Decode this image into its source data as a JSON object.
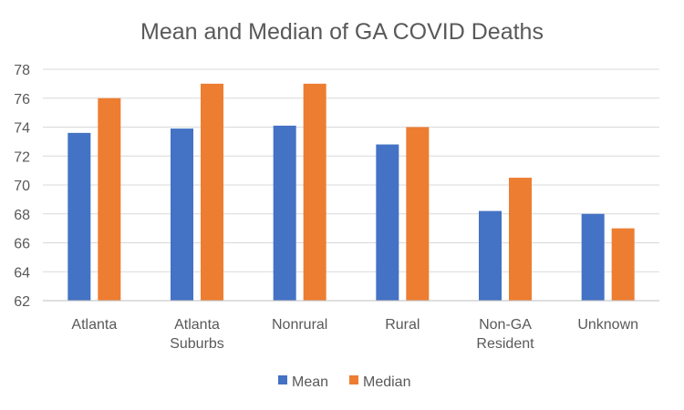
{
  "chart_data": {
    "type": "bar",
    "title": "Mean and Median of GA COVID Deaths",
    "categories": [
      [
        "Atlanta"
      ],
      [
        "Atlanta",
        "Suburbs"
      ],
      [
        "Nonrural"
      ],
      [
        "Rural"
      ],
      [
        "Non-GA",
        "Resident"
      ],
      [
        "Unknown"
      ]
    ],
    "series": [
      {
        "name": "Mean",
        "color": "#4472C4",
        "values": [
          73.6,
          73.9,
          74.1,
          72.8,
          68.2,
          68.0
        ]
      },
      {
        "name": "Median",
        "color": "#ED7D31",
        "values": [
          76,
          77,
          77,
          74,
          70.5,
          67
        ]
      }
    ],
    "ylim": [
      62,
      78
    ],
    "yticks": [
      62,
      64,
      66,
      68,
      70,
      72,
      74,
      76,
      78
    ],
    "xlabel": "",
    "ylabel": "",
    "grid": true,
    "legend": "bottom"
  }
}
